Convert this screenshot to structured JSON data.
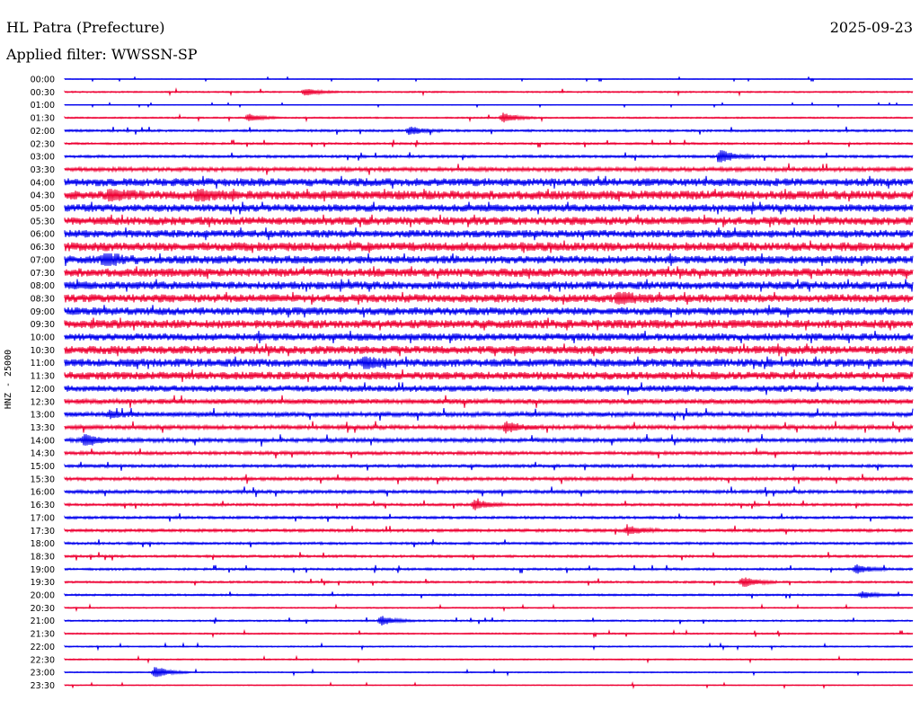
{
  "header": {
    "station": "HL Patra (Prefecture)",
    "date": "2025-09-23",
    "filter": "Applied filter: WWSSN-SP"
  },
  "axis": {
    "ylabel": "HNZ - 25000"
  },
  "colors": {
    "series_a": "#0000ee",
    "series_b": "#ee0033"
  },
  "chart_data": {
    "type": "line",
    "title": "HL Patra (Prefecture)",
    "subtitle": "Applied filter: WWSSN-SP",
    "date": "2025-09-23",
    "ylabel": "HNZ - 25000",
    "rows": [
      "00:00",
      "00:30",
      "01:00",
      "01:30",
      "02:00",
      "02:30",
      "03:00",
      "03:30",
      "04:00",
      "04:30",
      "05:00",
      "05:30",
      "06:00",
      "06:30",
      "07:00",
      "07:30",
      "08:00",
      "08:30",
      "09:00",
      "09:30",
      "10:00",
      "10:30",
      "11:00",
      "11:30",
      "12:00",
      "12:30",
      "13:00",
      "13:30",
      "14:00",
      "14:30",
      "15:00",
      "15:30",
      "16:00",
      "16:30",
      "17:00",
      "17:30",
      "18:00",
      "18:30",
      "19:00",
      "19:30",
      "20:00",
      "20:30",
      "21:00",
      "21:30",
      "22:00",
      "22:30",
      "23:00",
      "23:30"
    ],
    "noise_level": [
      0.3,
      0.8,
      0.3,
      0.8,
      1.2,
      1.1,
      1.4,
      2.2,
      4.5,
      5.0,
      4.2,
      4.6,
      4.3,
      5.0,
      4.5,
      4.8,
      4.5,
      4.6,
      4.4,
      4.8,
      4.2,
      4.6,
      4.6,
      4.4,
      3.6,
      2.8,
      2.5,
      2.2,
      2.2,
      1.8,
      1.6,
      1.8,
      1.8,
      1.4,
      1.4,
      1.6,
      1.3,
      1.3,
      1.2,
      1.1,
      1.0,
      0.7,
      0.9,
      0.8,
      0.7,
      0.7,
      0.6,
      0.5
    ],
    "events": [
      {
        "row": "00:30",
        "minute": 8.5,
        "amp": 4
      },
      {
        "row": "01:30",
        "minute": 6.5,
        "amp": 4
      },
      {
        "row": "01:30",
        "minute": 15.5,
        "amp": 6
      },
      {
        "row": "02:00",
        "minute": 12.2,
        "amp": 5
      },
      {
        "row": "03:00",
        "minute": 23.2,
        "amp": 7
      },
      {
        "row": "04:30",
        "minute": 1.6,
        "amp": 6
      },
      {
        "row": "04:30",
        "minute": 4.7,
        "amp": 6
      },
      {
        "row": "07:00",
        "minute": 1.4,
        "amp": 7
      },
      {
        "row": "08:30",
        "minute": 19.6,
        "amp": 7
      },
      {
        "row": "11:00",
        "minute": 10.6,
        "amp": 5
      },
      {
        "row": "13:00",
        "minute": 1.6,
        "amp": 4
      },
      {
        "row": "13:30",
        "minute": 15.6,
        "amp": 6
      },
      {
        "row": "14:00",
        "minute": 0.7,
        "amp": 7
      },
      {
        "row": "16:30",
        "minute": 14.5,
        "amp": 6
      },
      {
        "row": "17:30",
        "minute": 19.9,
        "amp": 5
      },
      {
        "row": "19:00",
        "minute": 28.0,
        "amp": 5
      },
      {
        "row": "19:30",
        "minute": 24.0,
        "amp": 6
      },
      {
        "row": "20:00",
        "minute": 28.2,
        "amp": 4
      },
      {
        "row": "21:00",
        "minute": 11.2,
        "amp": 5
      },
      {
        "row": "23:00",
        "minute": 3.2,
        "amp": 7
      }
    ]
  }
}
